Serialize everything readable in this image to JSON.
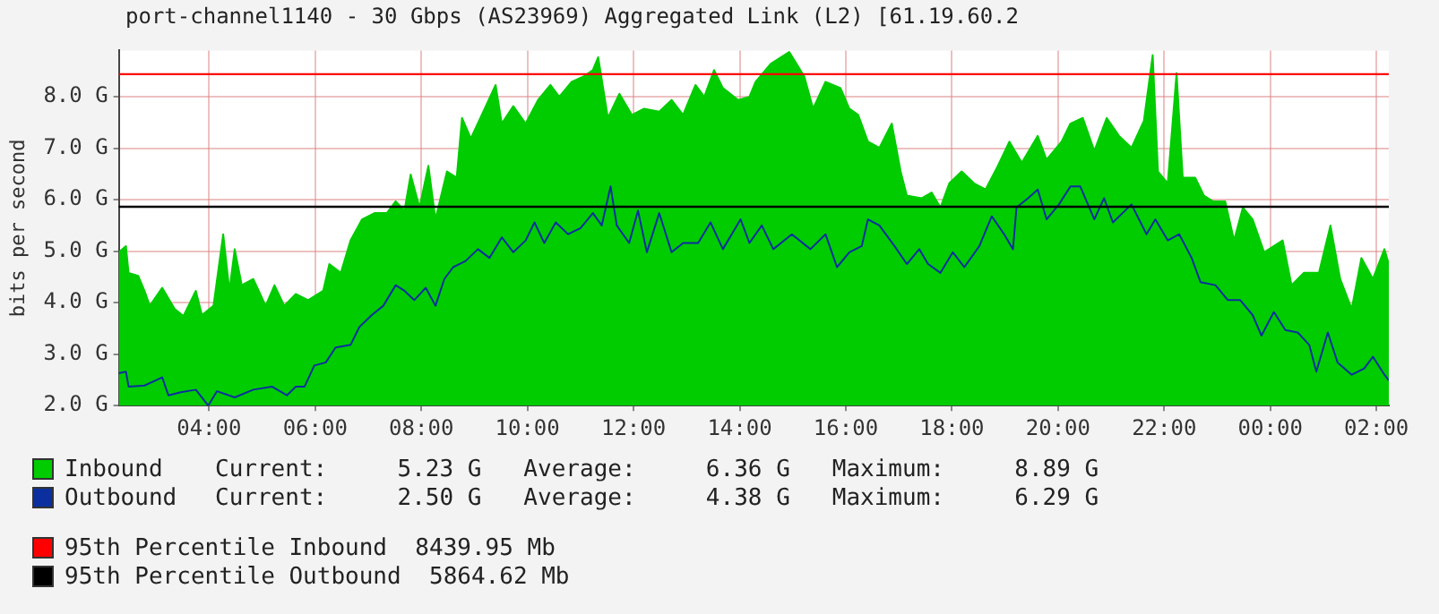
{
  "chart_data": {
    "type": "area",
    "title": "port-channel1140 - 30 Gbps (AS23969) Aggregated Link (L2) [61.19.60.2",
    "ylabel": "bits per second",
    "xlim": [
      "2000-01-01T02:18",
      "2000-01-02T02:14"
    ],
    "xticks": [
      {
        "value": "2000-01-01T04:00",
        "label": "04:00"
      },
      {
        "value": "2000-01-01T06:00",
        "label": "06:00"
      },
      {
        "value": "2000-01-01T08:00",
        "label": "08:00"
      },
      {
        "value": "2000-01-01T10:00",
        "label": "10:00"
      },
      {
        "value": "2000-01-01T12:00",
        "label": "12:00"
      },
      {
        "value": "2000-01-01T14:00",
        "label": "14:00"
      },
      {
        "value": "2000-01-01T16:00",
        "label": "16:00"
      },
      {
        "value": "2000-01-01T18:00",
        "label": "18:00"
      },
      {
        "value": "2000-01-01T20:00",
        "label": "20:00"
      },
      {
        "value": "2000-01-01T22:00",
        "label": "22:00"
      },
      {
        "value": "2000-01-02T00:00",
        "label": "00:00"
      },
      {
        "value": "2000-01-02T02:00",
        "label": "02:00"
      }
    ],
    "ylim": [
      2.0,
      8.9
    ],
    "yticks": [
      {
        "value": 2,
        "label": "2.0 G"
      },
      {
        "value": 3,
        "label": "3.0 G"
      },
      {
        "value": 4,
        "label": "4.0 G"
      },
      {
        "value": 5,
        "label": "5.0 G"
      },
      {
        "value": 6,
        "label": "6.0 G"
      },
      {
        "value": 7,
        "label": "7.0 G"
      },
      {
        "value": 8,
        "label": "8.0 G"
      }
    ],
    "grid": true,
    "legend": "bottom",
    "marker": "none",
    "series": [
      {
        "name": "Inbound",
        "type": "area",
        "color": "#00cc00",
        "x": [
          "2000-01-01T02:18",
          "2000-01-01T02:26",
          "2000-01-01T02:29",
          "2000-01-01T02:40",
          "2000-01-01T02:47",
          "2000-01-01T02:53",
          "2000-01-01T03:07",
          "2000-01-01T03:21",
          "2000-01-01T03:31",
          "2000-01-01T03:45",
          "2000-01-01T03:52",
          "2000-01-01T04:05",
          "2000-01-01T04:16",
          "2000-01-01T04:23",
          "2000-01-01T04:29",
          "2000-01-01T04:37",
          "2000-01-01T04:50",
          "2000-01-01T05:04",
          "2000-01-01T05:14",
          "2000-01-01T05:25",
          "2000-01-01T05:38",
          "2000-01-01T05:52",
          "2000-01-01T06:09",
          "2000-01-01T06:16",
          "2000-01-01T06:29",
          "2000-01-01T06:40",
          "2000-01-01T06:53",
          "2000-01-01T07:07",
          "2000-01-01T07:21",
          "2000-01-01T07:31",
          "2000-01-01T07:41",
          "2000-01-01T07:48",
          "2000-01-01T07:58",
          "2000-01-01T08:08",
          "2000-01-01T08:16",
          "2000-01-01T08:29",
          "2000-01-01T08:40",
          "2000-01-01T08:46",
          "2000-01-01T08:56",
          "2000-01-01T09:10",
          "2000-01-01T09:24",
          "2000-01-01T09:31",
          "2000-01-01T09:44",
          "2000-01-01T09:58",
          "2000-01-01T10:12",
          "2000-01-01T10:26",
          "2000-01-01T10:36",
          "2000-01-01T10:50",
          "2000-01-01T11:04",
          "2000-01-01T11:14",
          "2000-01-01T11:20",
          "2000-01-01T11:31",
          "2000-01-01T11:44",
          "2000-01-01T11:58",
          "2000-01-01T12:12",
          "2000-01-01T12:29",
          "2000-01-01T12:43",
          "2000-01-01T12:56",
          "2000-01-01T13:10",
          "2000-01-01T13:20",
          "2000-01-01T13:31",
          "2000-01-01T13:41",
          "2000-01-01T13:58",
          "2000-01-01T14:11",
          "2000-01-01T14:18",
          "2000-01-01T14:35",
          "2000-01-01T14:56",
          "2000-01-01T15:13",
          "2000-01-01T15:23",
          "2000-01-01T15:37",
          "2000-01-01T15:54",
          "2000-01-01T16:04",
          "2000-01-01T16:14",
          "2000-01-01T16:25",
          "2000-01-01T16:38",
          "2000-01-01T16:52",
          "2000-01-01T17:02",
          "2000-01-01T17:09",
          "2000-01-01T17:26",
          "2000-01-01T17:37",
          "2000-01-01T17:47",
          "2000-01-01T17:57",
          "2000-01-01T18:11",
          "2000-01-01T18:25",
          "2000-01-01T18:38",
          "2000-01-01T18:52",
          "2000-01-01T19:05",
          "2000-01-01T19:19",
          "2000-01-01T19:37",
          "2000-01-01T19:47",
          "2000-01-01T20:04",
          "2000-01-01T20:14",
          "2000-01-01T20:28",
          "2000-01-01T20:41",
          "2000-01-01T20:55",
          "2000-01-01T21:09",
          "2000-01-01T21:23",
          "2000-01-01T21:37",
          "2000-01-01T21:47",
          "2000-01-01T21:53",
          "2000-01-01T22:04",
          "2000-01-01T22:14",
          "2000-01-01T22:21",
          "2000-01-01T22:35",
          "2000-01-01T22:45",
          "2000-01-01T22:55",
          "2000-01-01T23:09",
          "2000-01-01T23:19",
          "2000-01-01T23:29",
          "2000-01-01T23:40",
          "2000-01-01T23:53",
          "2000-01-02T00:14",
          "2000-01-02T00:24",
          "2000-01-02T00:38",
          "2000-01-02T00:55",
          "2000-01-02T01:08",
          "2000-01-02T01:19",
          "2000-01-02T01:32",
          "2000-01-02T01:43",
          "2000-01-02T01:56",
          "2000-01-02T02:09",
          "2000-01-02T02:14"
        ],
        "values": [
          4.98,
          5.1,
          4.58,
          4.52,
          4.23,
          3.94,
          4.29,
          3.88,
          3.74,
          4.23,
          3.76,
          3.94,
          5.33,
          4.23,
          5.04,
          4.34,
          4.46,
          3.94,
          4.34,
          3.94,
          4.17,
          4.05,
          4.23,
          4.75,
          4.58,
          5.21,
          5.62,
          5.74,
          5.74,
          5.97,
          5.79,
          6.49,
          5.85,
          6.66,
          5.62,
          6.55,
          6.43,
          7.59,
          7.19,
          7.71,
          8.23,
          7.48,
          7.82,
          7.48,
          7.94,
          8.23,
          8.0,
          8.29,
          8.4,
          8.52,
          8.77,
          7.59,
          8.06,
          7.65,
          7.77,
          7.71,
          7.94,
          7.65,
          8.23,
          8.0,
          8.52,
          8.17,
          7.94,
          8.0,
          8.29,
          8.64,
          8.87,
          8.4,
          7.77,
          8.29,
          8.17,
          7.77,
          7.65,
          7.13,
          7.01,
          7.48,
          6.55,
          6.08,
          6.03,
          6.14,
          5.85,
          6.32,
          6.55,
          6.32,
          6.2,
          6.66,
          7.13,
          6.72,
          7.24,
          6.78,
          7.13,
          7.48,
          7.59,
          6.95,
          7.59,
          7.24,
          7.01,
          7.53,
          8.81,
          6.55,
          6.32,
          8.46,
          6.43,
          6.43,
          6.08,
          5.97,
          5.97,
          5.21,
          5.85,
          5.62,
          4.98,
          5.21,
          4.34,
          4.58,
          4.58,
          5.5,
          4.46,
          3.88,
          4.87,
          4.46,
          5.04,
          4.75
        ]
      },
      {
        "name": "Outbound",
        "type": "line",
        "color": "#0b2f9f",
        "x": [
          "2000-01-01T02:18",
          "2000-01-01T02:26",
          "2000-01-01T02:29",
          "2000-01-01T02:47",
          "2000-01-01T03:07",
          "2000-01-01T03:14",
          "2000-01-01T03:28",
          "2000-01-01T03:45",
          "2000-01-01T03:59",
          "2000-01-01T04:09",
          "2000-01-01T04:29",
          "2000-01-01T04:50",
          "2000-01-01T05:11",
          "2000-01-01T05:28",
          "2000-01-01T05:38",
          "2000-01-01T05:48",
          "2000-01-01T05:59",
          "2000-01-01T06:12",
          "2000-01-01T06:23",
          "2000-01-01T06:40",
          "2000-01-01T06:50",
          "2000-01-01T07:04",
          "2000-01-01T07:17",
          "2000-01-01T07:31",
          "2000-01-01T07:41",
          "2000-01-01T07:52",
          "2000-01-01T08:05",
          "2000-01-01T08:16",
          "2000-01-01T08:26",
          "2000-01-01T08:36",
          "2000-01-01T08:50",
          "2000-01-01T09:04",
          "2000-01-01T09:17",
          "2000-01-01T09:31",
          "2000-01-01T09:44",
          "2000-01-01T09:58",
          "2000-01-01T10:08",
          "2000-01-01T10:19",
          "2000-01-01T10:32",
          "2000-01-01T10:46",
          "2000-01-01T11:00",
          "2000-01-01T11:14",
          "2000-01-01T11:24",
          "2000-01-01T11:34",
          "2000-01-01T11:41",
          "2000-01-01T11:55",
          "2000-01-01T12:05",
          "2000-01-01T12:15",
          "2000-01-01T12:29",
          "2000-01-01T12:43",
          "2000-01-01T12:56",
          "2000-01-01T13:13",
          "2000-01-01T13:27",
          "2000-01-01T13:41",
          "2000-01-01T14:01",
          "2000-01-01T14:11",
          "2000-01-01T14:25",
          "2000-01-01T14:38",
          "2000-01-01T14:59",
          "2000-01-01T15:20",
          "2000-01-01T15:37",
          "2000-01-01T15:50",
          "2000-01-01T16:04",
          "2000-01-01T16:18",
          "2000-01-01T16:25",
          "2000-01-01T16:38",
          "2000-01-01T16:55",
          "2000-01-01T17:09",
          "2000-01-01T17:23",
          "2000-01-01T17:33",
          "2000-01-01T17:47",
          "2000-01-01T18:01",
          "2000-01-01T18:14",
          "2000-01-01T18:31",
          "2000-01-01T18:45",
          "2000-01-01T18:59",
          "2000-01-01T19:09",
          "2000-01-01T19:13",
          "2000-01-01T19:26",
          "2000-01-01T19:37",
          "2000-01-01T19:47",
          "2000-01-01T20:01",
          "2000-01-01T20:14",
          "2000-01-01T20:25",
          "2000-01-01T20:41",
          "2000-01-01T20:52",
          "2000-01-01T21:02",
          "2000-01-01T21:23",
          "2000-01-01T21:40",
          "2000-01-01T21:50",
          "2000-01-01T22:04",
          "2000-01-01T22:17",
          "2000-01-01T22:31",
          "2000-01-01T22:41",
          "2000-01-01T22:58",
          "2000-01-01T23:12",
          "2000-01-01T23:26",
          "2000-01-01T23:40",
          "2000-01-01T23:50",
          "2000-01-02T00:04",
          "2000-01-02T00:17",
          "2000-01-02T00:31",
          "2000-01-02T00:44",
          "2000-01-02T00:52",
          "2000-01-02T01:05",
          "2000-01-02T01:16",
          "2000-01-02T01:32",
          "2000-01-02T01:46",
          "2000-01-02T01:56",
          "2000-01-02T02:09",
          "2000-01-02T02:14"
        ],
        "values": [
          2.63,
          2.66,
          2.37,
          2.39,
          2.55,
          2.2,
          2.26,
          2.31,
          2.0,
          2.28,
          2.16,
          2.31,
          2.37,
          2.2,
          2.37,
          2.37,
          2.78,
          2.84,
          3.13,
          3.18,
          3.53,
          3.76,
          3.94,
          4.34,
          4.23,
          4.05,
          4.29,
          3.94,
          4.46,
          4.69,
          4.81,
          5.04,
          4.87,
          5.27,
          4.98,
          5.21,
          5.56,
          5.16,
          5.56,
          5.33,
          5.45,
          5.74,
          5.5,
          6.26,
          5.5,
          5.16,
          5.79,
          4.98,
          5.74,
          4.98,
          5.16,
          5.16,
          5.56,
          5.04,
          5.62,
          5.16,
          5.5,
          5.04,
          5.33,
          5.04,
          5.33,
          4.69,
          4.98,
          5.1,
          5.62,
          5.5,
          5.1,
          4.75,
          5.04,
          4.75,
          4.58,
          4.98,
          4.69,
          5.1,
          5.68,
          5.33,
          5.04,
          5.85,
          6.03,
          6.2,
          5.62,
          5.91,
          6.26,
          6.26,
          5.62,
          6.03,
          5.56,
          5.91,
          5.33,
          5.62,
          5.21,
          5.33,
          4.87,
          4.4,
          4.34,
          4.05,
          4.05,
          3.76,
          3.36,
          3.82,
          3.47,
          3.42,
          3.18,
          2.66,
          3.42,
          2.84,
          2.6,
          2.72,
          2.95,
          2.6,
          2.49
        ]
      }
    ],
    "ref_lines": [
      {
        "axis": "y",
        "value": 8.43995,
        "label": "95th Percentile Inbound  8439.95 Mb",
        "color": "#ff0000"
      },
      {
        "axis": "y",
        "value": 5.86462,
        "label": "95th Percentile Outbound  5864.62 Mb",
        "color": "#000000"
      }
    ],
    "annotations": [
      "Current:     5.23 G   Average:     6.36 G   Maximum:     8.89 G",
      "Current:     2.50 G   Average:     4.38 G   Maximum:     6.29 G"
    ]
  }
}
